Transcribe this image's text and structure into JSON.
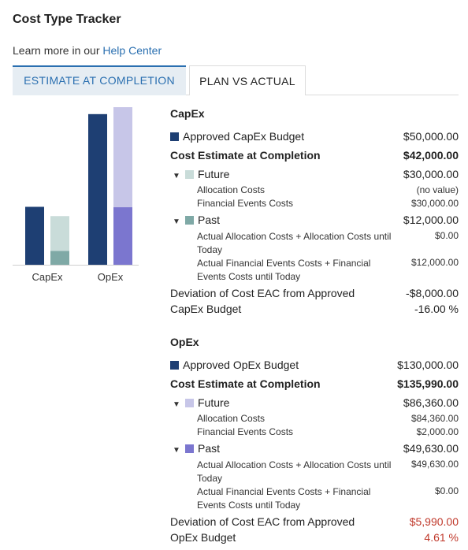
{
  "header": {
    "title": "Cost Type Tracker",
    "learn_prefix": "Learn more in our ",
    "help_link": "Help Center"
  },
  "tabs": [
    {
      "label": "ESTIMATE AT COMPLETION",
      "active": true
    },
    {
      "label": "PLAN VS ACTUAL",
      "active": false
    }
  ],
  "colors": {
    "approved": "#1e3f73",
    "capex_future": "#c9dcd9",
    "capex_past": "#7fa9a6",
    "opex_future": "#c7c6e8",
    "opex_past": "#7b76cf",
    "negative_red": "#c0392b"
  },
  "chart_data": {
    "type": "bar",
    "categories": [
      "CapEx",
      "OpEx"
    ],
    "series": [
      {
        "name": "Approved Budget",
        "values": [
          50000,
          130000
        ]
      },
      {
        "name": "Past",
        "values": [
          12000,
          49630
        ]
      },
      {
        "name": "Future",
        "values": [
          30000,
          86360
        ]
      }
    ],
    "stacked_series": [
      "Past",
      "Future"
    ],
    "ylim": [
      0,
      136000
    ],
    "grid": false
  },
  "capex": {
    "title": "CapEx",
    "approved_label": "Approved CapEx Budget",
    "approved_value": "$50,000.00",
    "eac_label": "Cost Estimate at Completion",
    "eac_value": "$42,000.00",
    "future_label": "Future",
    "future_value": "$30,000.00",
    "future_alloc_label": "Allocation Costs",
    "future_alloc_value": "(no value)",
    "future_fin_label": "Financial Events Costs",
    "future_fin_value": "$30,000.00",
    "past_label": "Past",
    "past_value": "$12,000.00",
    "past_alloc_label": "Actual Allocation Costs + Allocation Costs until Today",
    "past_alloc_value": "$0.00",
    "past_fin_label": "Actual Financial Events Costs + Financial Events Costs until Today",
    "past_fin_value": "$12,000.00",
    "dev_label": "Deviation of Cost EAC from Approved",
    "dev_value": "-$8,000.00",
    "budget_label": "CapEx Budget",
    "budget_value": "-16.00 %"
  },
  "opex": {
    "title": "OpEx",
    "approved_label": "Approved OpEx Budget",
    "approved_value": "$130,000.00",
    "eac_label": "Cost Estimate at Completion",
    "eac_value": "$135,990.00",
    "future_label": "Future",
    "future_value": "$86,360.00",
    "future_alloc_label": "Allocation Costs",
    "future_alloc_value": "$84,360.00",
    "future_fin_label": "Financial Events Costs",
    "future_fin_value": "$2,000.00",
    "past_label": "Past",
    "past_value": "$49,630.00",
    "past_alloc_label": "Actual Allocation Costs + Allocation Costs until Today",
    "past_alloc_value": "$49,630.00",
    "past_fin_label": "Actual Financial Events Costs + Financial Events Costs until Today",
    "past_fin_value": "$0.00",
    "dev_label": "Deviation of Cost EAC from Approved",
    "dev_value": "$5,990.00",
    "budget_label": "OpEx Budget",
    "budget_value": "4.61 %"
  }
}
